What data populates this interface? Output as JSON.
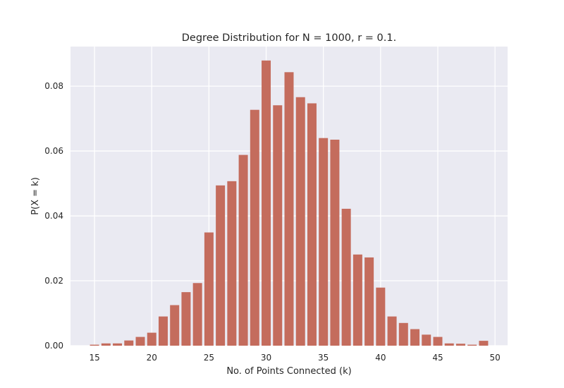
{
  "chart_data": {
    "type": "bar",
    "title": "Degree Distribution for N = 1000, r = 0.1.",
    "xlabel": "No. of Points Connected (k)",
    "ylabel": "P(X = k)",
    "xlim": [
      12.9,
      51.1
    ],
    "ylim": [
      0,
      0.0922
    ],
    "grid": true,
    "xticks": [
      "15",
      "20",
      "25",
      "30",
      "35",
      "40",
      "45",
      "50"
    ],
    "xtick_values": [
      15,
      20,
      25,
      30,
      35,
      40,
      45,
      50
    ],
    "yticks": [
      "0.00",
      "0.02",
      "0.04",
      "0.06",
      "0.08"
    ],
    "ytick_values": [
      0,
      0.02,
      0.04,
      0.06,
      0.08
    ],
    "bar_color": "#c46c5d",
    "background_color": "#eaeaf2",
    "x": [
      15,
      16,
      17,
      18,
      19,
      20,
      21,
      22,
      23,
      24,
      25,
      26,
      27,
      28,
      29,
      30,
      31,
      32,
      33,
      34,
      35,
      36,
      37,
      38,
      39,
      40,
      41,
      42,
      43,
      44,
      45,
      46,
      47,
      48,
      49
    ],
    "values": [
      0.0003,
      0.0007,
      0.0007,
      0.0016,
      0.0027,
      0.004,
      0.009,
      0.0125,
      0.0165,
      0.0193,
      0.0349,
      0.0494,
      0.0507,
      0.0588,
      0.0727,
      0.0879,
      0.0741,
      0.0843,
      0.0766,
      0.0747,
      0.064,
      0.0635,
      0.0422,
      0.0281,
      0.0272,
      0.0179,
      0.009,
      0.007,
      0.0051,
      0.0034,
      0.0027,
      0.0007,
      0.0006,
      0.0003,
      0.0015
    ]
  }
}
